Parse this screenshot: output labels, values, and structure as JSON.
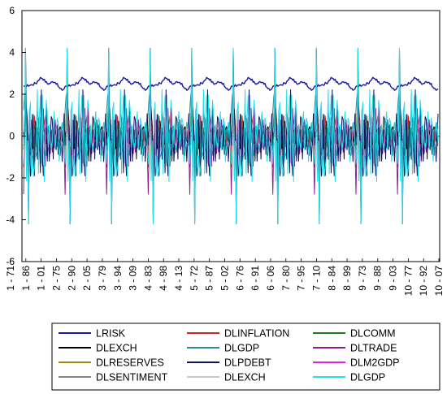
{
  "chart_data": {
    "type": "line",
    "title": "",
    "xlabel": "",
    "ylabel": "",
    "ylim": [
      -6,
      6
    ],
    "y_ticks": [
      -6,
      -4,
      -2,
      0,
      2,
      4,
      6
    ],
    "grid": false,
    "legend_placement": "bottom",
    "x_tick_labels": [
      "1 - 71",
      "1 - 86",
      "1 - 01",
      "2 - 75",
      "2 - 90",
      "2 - 05",
      "3 - 79",
      "3 - 94",
      "3 - 09",
      "4 - 83",
      "4 - 98",
      "4 - 13",
      "5 - 72",
      "5 - 87",
      "5 - 02",
      "6 - 76",
      "6 - 91",
      "6 - 06",
      "7 - 80",
      "7 - 95",
      "7 - 10",
      "8 - 84",
      "8 - 99",
      "9 - 73",
      "9 - 88",
      "9 - 03",
      "10 - 77",
      "10 - 92",
      "10 - 07"
    ],
    "periods": 10,
    "series": [
      {
        "name": "LRISK",
        "color": "#1a1aa0",
        "profile": "risk",
        "level": 2.5,
        "amplitude": 0.35
      },
      {
        "name": "DLINFLATION",
        "color": "#cc2222",
        "profile": "spiky",
        "amplitude": 1.9
      },
      {
        "name": "DLCOMM",
        "color": "#1e7a1e",
        "profile": "spiky",
        "amplitude": 1.0
      },
      {
        "name": "DLEXCH",
        "color": "#000000",
        "profile": "spiky",
        "amplitude": 1.6
      },
      {
        "name": "DLGDP",
        "color": "#2a8a9a",
        "profile": "spiky",
        "amplitude": 2.2
      },
      {
        "name": "DLTRADE",
        "color": "#8a1f8a",
        "profile": "spiky",
        "amplitude": 2.8
      },
      {
        "name": "DLRESERVES",
        "color": "#9a8a10",
        "profile": "spiky",
        "amplitude": 1.2
      },
      {
        "name": "DLPDEBT",
        "color": "#101060",
        "profile": "spiky",
        "amplitude": 4.2
      },
      {
        "name": "DLM2GDP",
        "color": "#e020e0",
        "profile": "spiky",
        "amplitude": 0.3
      },
      {
        "name": "DLSENTIMENT",
        "color": "#888888",
        "profile": "spiky",
        "amplitude": 0.4
      },
      {
        "name": "DLEXCH",
        "color": "#c8c8c8",
        "profile": "spiky",
        "amplitude": 0.5
      },
      {
        "name": "DLGDP",
        "color": "#22e0e8",
        "profile": "spiky",
        "amplitude": 4.2
      }
    ]
  }
}
